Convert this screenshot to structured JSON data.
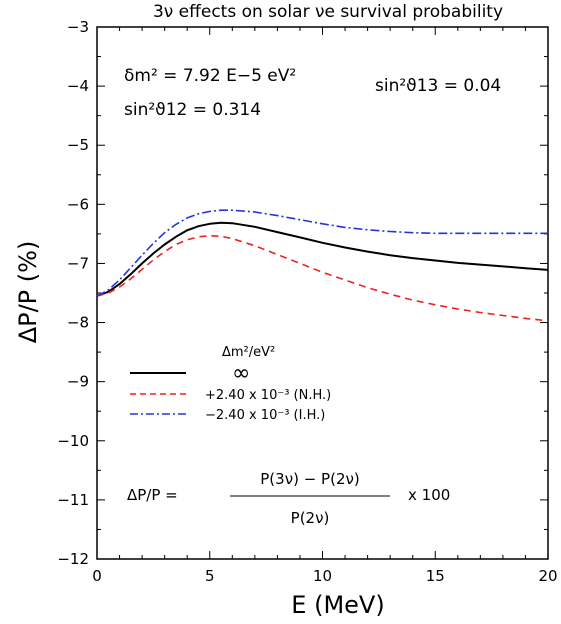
{
  "chart_data": {
    "type": "line",
    "title": "3ν effects on solar νe survival probability",
    "xlabel": "E (MeV)",
    "ylabel": "ΔP/P (%)",
    "xlim": [
      0,
      20
    ],
    "ylim": [
      -12,
      -3
    ],
    "xticks": [
      0,
      5,
      10,
      15,
      20
    ],
    "xtick_labels": [
      "0",
      "5",
      "10",
      "15",
      "20"
    ],
    "yticks": [
      -12,
      -11,
      -10,
      -9,
      -8,
      -7,
      -6,
      -5,
      -4,
      -3
    ],
    "ytick_labels": [
      "−12",
      "−11",
      "−10",
      "−9",
      "−8",
      "−7",
      "−6",
      "−5",
      "−4",
      "−3"
    ],
    "grid": false,
    "legend_position": "lower-left",
    "annotations": {
      "dm2": "δm² = 7.92 E−5 eV²",
      "sin2_12": "sin²ϑ12 = 0.314",
      "sin2_13": "sin²ϑ13 = 0.04",
      "formula_lhs": "ΔP/P =",
      "formula_num": "P(3ν) − P(2ν)",
      "formula_den": "P(2ν)",
      "formula_factor": "x 100"
    },
    "legend": {
      "header": "Δm²/eV²"
    },
    "series": [
      {
        "name": "∞",
        "color": "#000000",
        "dash": "solid",
        "x": [
          0,
          0.5,
          1,
          1.5,
          2,
          2.5,
          3,
          3.5,
          4,
          4.5,
          5,
          5.5,
          6,
          7,
          8,
          9,
          10,
          11,
          12,
          13,
          14,
          15,
          16,
          17,
          18,
          19,
          20
        ],
        "y": [
          -7.55,
          -7.48,
          -7.35,
          -7.18,
          -7.0,
          -6.83,
          -6.68,
          -6.55,
          -6.44,
          -6.37,
          -6.33,
          -6.31,
          -6.32,
          -6.38,
          -6.47,
          -6.56,
          -6.65,
          -6.73,
          -6.8,
          -6.86,
          -6.91,
          -6.95,
          -6.99,
          -7.02,
          -7.05,
          -7.08,
          -7.11
        ]
      },
      {
        "name": "+2.40 x 10⁻³ (N.H.)",
        "color": "#ee2222",
        "dash": "dashed",
        "x": [
          0,
          0.5,
          1,
          1.5,
          2,
          2.5,
          3,
          3.5,
          4,
          4.5,
          5,
          5.5,
          6,
          7,
          8,
          9,
          10,
          11,
          12,
          13,
          14,
          15,
          16,
          17,
          18,
          19,
          20
        ],
        "y": [
          -7.55,
          -7.5,
          -7.4,
          -7.26,
          -7.1,
          -6.94,
          -6.8,
          -6.68,
          -6.6,
          -6.55,
          -6.53,
          -6.54,
          -6.58,
          -6.7,
          -6.85,
          -7.0,
          -7.15,
          -7.28,
          -7.41,
          -7.52,
          -7.62,
          -7.7,
          -7.77,
          -7.83,
          -7.88,
          -7.93,
          -7.97
        ]
      },
      {
        "name": "−2.40 x 10⁻³ (I.H.)",
        "color": "#2233dd",
        "dash": "dashdot",
        "x": [
          0,
          0.5,
          1,
          1.5,
          2,
          2.5,
          3,
          3.5,
          4,
          4.5,
          5,
          5.5,
          6,
          7,
          8,
          9,
          10,
          11,
          12,
          13,
          14,
          15,
          16,
          17,
          18,
          19,
          20
        ],
        "y": [
          -7.55,
          -7.45,
          -7.28,
          -7.07,
          -6.86,
          -6.66,
          -6.48,
          -6.34,
          -6.23,
          -6.16,
          -6.12,
          -6.1,
          -6.1,
          -6.13,
          -6.19,
          -6.26,
          -6.33,
          -6.39,
          -6.43,
          -6.46,
          -6.48,
          -6.49,
          -6.49,
          -6.49,
          -6.49,
          -6.49,
          -6.49
        ]
      }
    ]
  }
}
